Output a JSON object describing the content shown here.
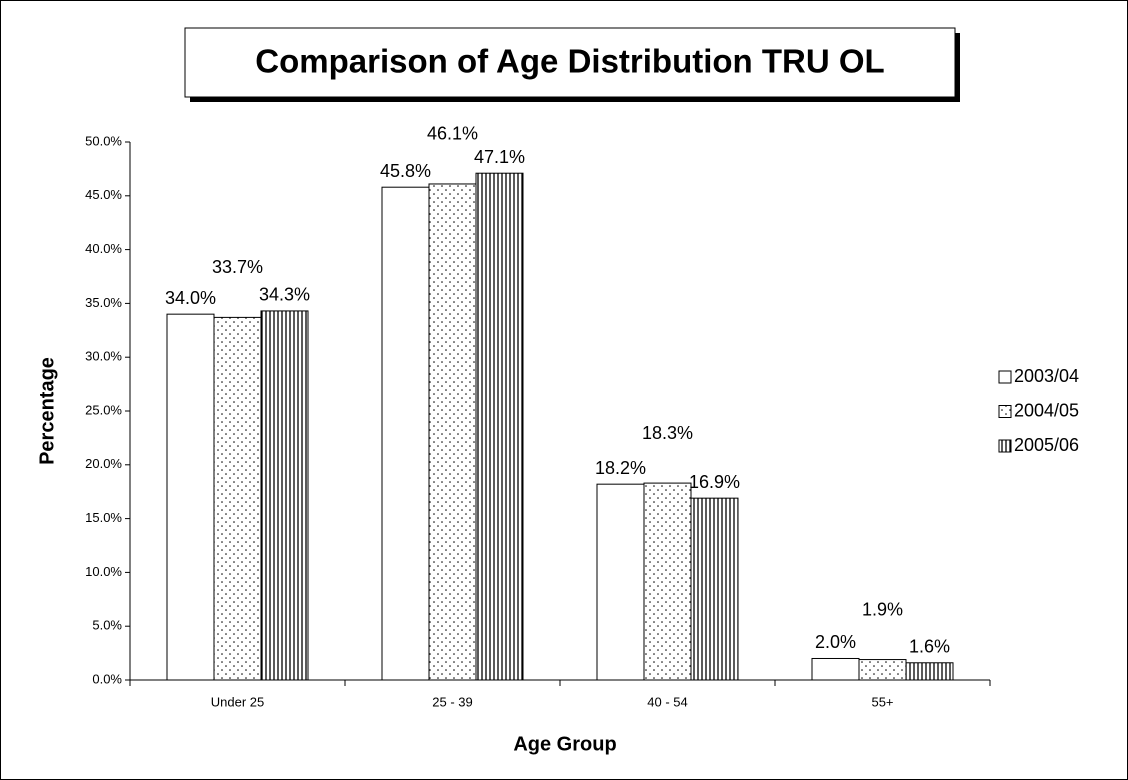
{
  "chart_data": {
    "type": "bar",
    "title": "Comparison of Age Distribution TRU OL",
    "x_label": "Age Group",
    "y_label": "Percentage",
    "categories": [
      "Under 25",
      "25 - 39",
      "40 - 54",
      "55+"
    ],
    "series": [
      {
        "name": "2003/04",
        "color": "#ffffff",
        "pattern": "none",
        "values": [
          34.0,
          45.8,
          18.2,
          2.0
        ],
        "value_labels": [
          "34.0%",
          "45.8%",
          "18.2%",
          "2.0%"
        ]
      },
      {
        "name": "2004/05",
        "color": "#ffffff",
        "pattern": "dots",
        "values": [
          33.7,
          46.1,
          18.3,
          1.9
        ],
        "value_labels": [
          "33.7%",
          "46.1%",
          "18.3%",
          "1.9%"
        ]
      },
      {
        "name": "2005/06",
        "color": "#ffffff",
        "pattern": "vertical-lines",
        "values": [
          34.3,
          47.1,
          16.9,
          1.6
        ],
        "value_labels": [
          "34.3%",
          "47.1%",
          "16.9%",
          "1.6%"
        ]
      }
    ],
    "ylim": [
      0,
      50
    ],
    "yticks": [
      {
        "value": 0,
        "label": "0.0%"
      },
      {
        "value": 5,
        "label": "5.0%"
      },
      {
        "value": 10,
        "label": "10.0%"
      },
      {
        "value": 15,
        "label": "15.0%"
      },
      {
        "value": 20,
        "label": "20.0%"
      },
      {
        "value": 25,
        "label": "25.0%"
      },
      {
        "value": 30,
        "label": "30.0%"
      },
      {
        "value": 35,
        "label": "35.0%"
      },
      {
        "value": 40,
        "label": "40.0%"
      },
      {
        "value": 45,
        "label": "45.0%"
      },
      {
        "value": 50,
        "label": "50.0%"
      }
    ],
    "grid": false,
    "legend": "right"
  }
}
